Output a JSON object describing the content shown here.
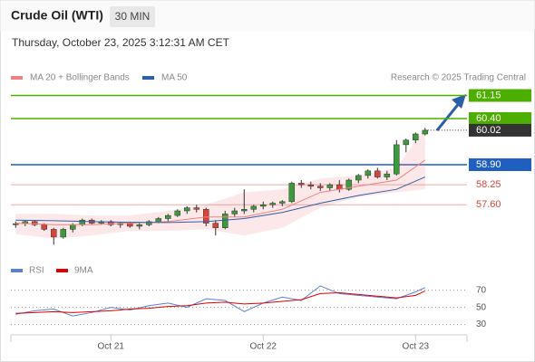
{
  "header": {
    "title": "Crude Oil (WTI)",
    "timeframe": "30 MIN",
    "datetime": "Thursday, October 23, 2025 3:12:31 AM CET",
    "credit": "Research © 2025 Trading Central"
  },
  "chart_data": [
    {
      "type": "candlestick",
      "xlim": [
        -0.5,
        47.4
      ],
      "ylim": [
        56,
        61.5
      ],
      "up_color": "#3c9a3c",
      "down_color": "#d9443a",
      "ohlc": [
        [
          56.95,
          57.05,
          56.85,
          56.98
        ],
        [
          56.98,
          57.1,
          56.9,
          57.05
        ],
        [
          57.05,
          57.1,
          56.9,
          56.95
        ],
        [
          56.95,
          57.0,
          56.75,
          56.8
        ],
        [
          56.8,
          56.85,
          56.3,
          56.55
        ],
        [
          56.55,
          56.85,
          56.5,
          56.8
        ],
        [
          56.8,
          57.0,
          56.7,
          56.95
        ],
        [
          56.95,
          57.15,
          56.9,
          57.1
        ],
        [
          57.1,
          57.15,
          56.95,
          57.0
        ],
        [
          57.0,
          57.1,
          56.95,
          57.05
        ],
        [
          57.05,
          57.1,
          56.9,
          56.95
        ],
        [
          56.95,
          57.05,
          56.85,
          57.0
        ],
        [
          57.0,
          57.05,
          56.85,
          56.9
        ],
        [
          56.9,
          57.0,
          56.8,
          56.95
        ],
        [
          56.95,
          57.1,
          56.9,
          57.05
        ],
        [
          57.05,
          57.2,
          57.0,
          57.15
        ],
        [
          57.15,
          57.3,
          57.05,
          57.25
        ],
        [
          57.25,
          57.45,
          57.2,
          57.4
        ],
        [
          57.4,
          57.55,
          57.3,
          57.5
        ],
        [
          57.5,
          57.6,
          57.35,
          57.45
        ],
        [
          57.45,
          57.5,
          56.9,
          57.0
        ],
        [
          57.0,
          57.1,
          56.6,
          56.85
        ],
        [
          56.85,
          57.4,
          56.8,
          57.3
        ],
        [
          57.3,
          57.5,
          57.2,
          57.4
        ],
        [
          57.4,
          58.1,
          57.3,
          57.45
        ],
        [
          57.45,
          57.6,
          57.35,
          57.55
        ],
        [
          57.55,
          57.7,
          57.45,
          57.6
        ],
        [
          57.6,
          57.7,
          57.5,
          57.65
        ],
        [
          57.65,
          57.75,
          57.55,
          57.7
        ],
        [
          57.7,
          58.35,
          57.65,
          58.3
        ],
        [
          58.3,
          58.4,
          58.15,
          58.25
        ],
        [
          58.25,
          58.35,
          58.1,
          58.2
        ],
        [
          58.2,
          58.3,
          58.05,
          58.15
        ],
        [
          58.15,
          58.3,
          58.05,
          58.25
        ],
        [
          58.25,
          58.4,
          58.0,
          58.1
        ],
        [
          58.1,
          58.45,
          58.05,
          58.4
        ],
        [
          58.4,
          58.6,
          58.3,
          58.55
        ],
        [
          58.55,
          58.75,
          58.45,
          58.7
        ],
        [
          58.7,
          58.8,
          58.45,
          58.5
        ],
        [
          58.5,
          58.7,
          58.4,
          58.6
        ],
        [
          58.6,
          59.7,
          58.55,
          59.55
        ],
        [
          59.55,
          59.75,
          59.3,
          59.7
        ],
        [
          59.7,
          59.95,
          59.6,
          59.9
        ],
        [
          59.9,
          60.1,
          59.85,
          60.02
        ]
      ],
      "series": [
        {
          "name": "MA 20 + Bollinger Bands",
          "color": "#f08080",
          "x": [
            0,
            4,
            8,
            12,
            16,
            20,
            24,
            28,
            32,
            36,
            40,
            43
          ],
          "values": [
            57.0,
            56.95,
            56.95,
            57.0,
            57.05,
            57.2,
            57.2,
            57.45,
            58.0,
            58.2,
            58.4,
            59.05
          ],
          "upper": [
            57.3,
            57.3,
            57.25,
            57.25,
            57.4,
            57.6,
            58.0,
            58.1,
            58.45,
            58.55,
            58.8,
            60.1
          ],
          "lower": [
            56.65,
            56.5,
            56.6,
            56.75,
            56.75,
            56.8,
            56.6,
            56.85,
            57.5,
            57.85,
            58.0,
            58.1
          ]
        },
        {
          "name": "MA 50",
          "color": "#2c5fa8",
          "x": [
            0,
            4,
            8,
            12,
            16,
            20,
            24,
            28,
            32,
            36,
            40,
            43
          ],
          "values": [
            57.1,
            57.08,
            57.05,
            57.03,
            57.02,
            57.05,
            57.15,
            57.35,
            57.65,
            57.9,
            58.1,
            58.5
          ]
        }
      ],
      "levels": {
        "values": [
          61.15,
          60.4,
          60.02,
          58.9,
          58.25,
          57.6
        ],
        "value_labels": [
          "61.15",
          "60.40",
          "60.02",
          "58.90",
          "58.25",
          "57.60"
        ],
        "colors": [
          "#4caf00",
          "#4caf00",
          "#333333",
          "#1f5fbf",
          "#d9443a",
          "#d9443a"
        ],
        "label_fill": [
          true,
          true,
          true,
          true,
          false,
          false
        ],
        "line": [
          "solid",
          "solid",
          "dotted",
          "solid",
          "solid",
          "solid"
        ]
      }
    },
    {
      "type": "line",
      "xlim": [
        -0.5,
        47.4
      ],
      "ylim": [
        18,
        97
      ],
      "yticks": [
        30,
        50,
        70
      ],
      "xticks": [
        {
          "value": 10,
          "label": "Oct 21"
        },
        {
          "value": 26,
          "label": "Oct 22"
        },
        {
          "value": 42,
          "label": "Oct 23"
        }
      ],
      "series": [
        {
          "name": "RSI",
          "color": "#5b7fd6",
          "x": [
            0,
            2,
            4,
            6,
            8,
            10,
            12,
            14,
            16,
            18,
            20,
            22,
            24,
            26,
            28,
            30,
            32,
            34,
            36,
            38,
            40,
            42,
            43
          ],
          "values": [
            42,
            46,
            48,
            40,
            44,
            50,
            47,
            52,
            55,
            50,
            60,
            58,
            45,
            55,
            62,
            58,
            75,
            66,
            64,
            62,
            60,
            68,
            73
          ]
        },
        {
          "name": "9MA",
          "color": "#e00000",
          "x": [
            0,
            2,
            4,
            6,
            8,
            10,
            12,
            14,
            16,
            18,
            20,
            22,
            24,
            26,
            28,
            30,
            32,
            34,
            36,
            38,
            40,
            42,
            43
          ],
          "values": [
            43,
            44,
            45,
            44,
            45,
            46,
            48,
            49,
            51,
            52,
            55,
            56,
            54,
            55,
            57,
            59,
            66,
            67,
            65,
            63,
            61,
            64,
            69
          ]
        }
      ]
    }
  ]
}
